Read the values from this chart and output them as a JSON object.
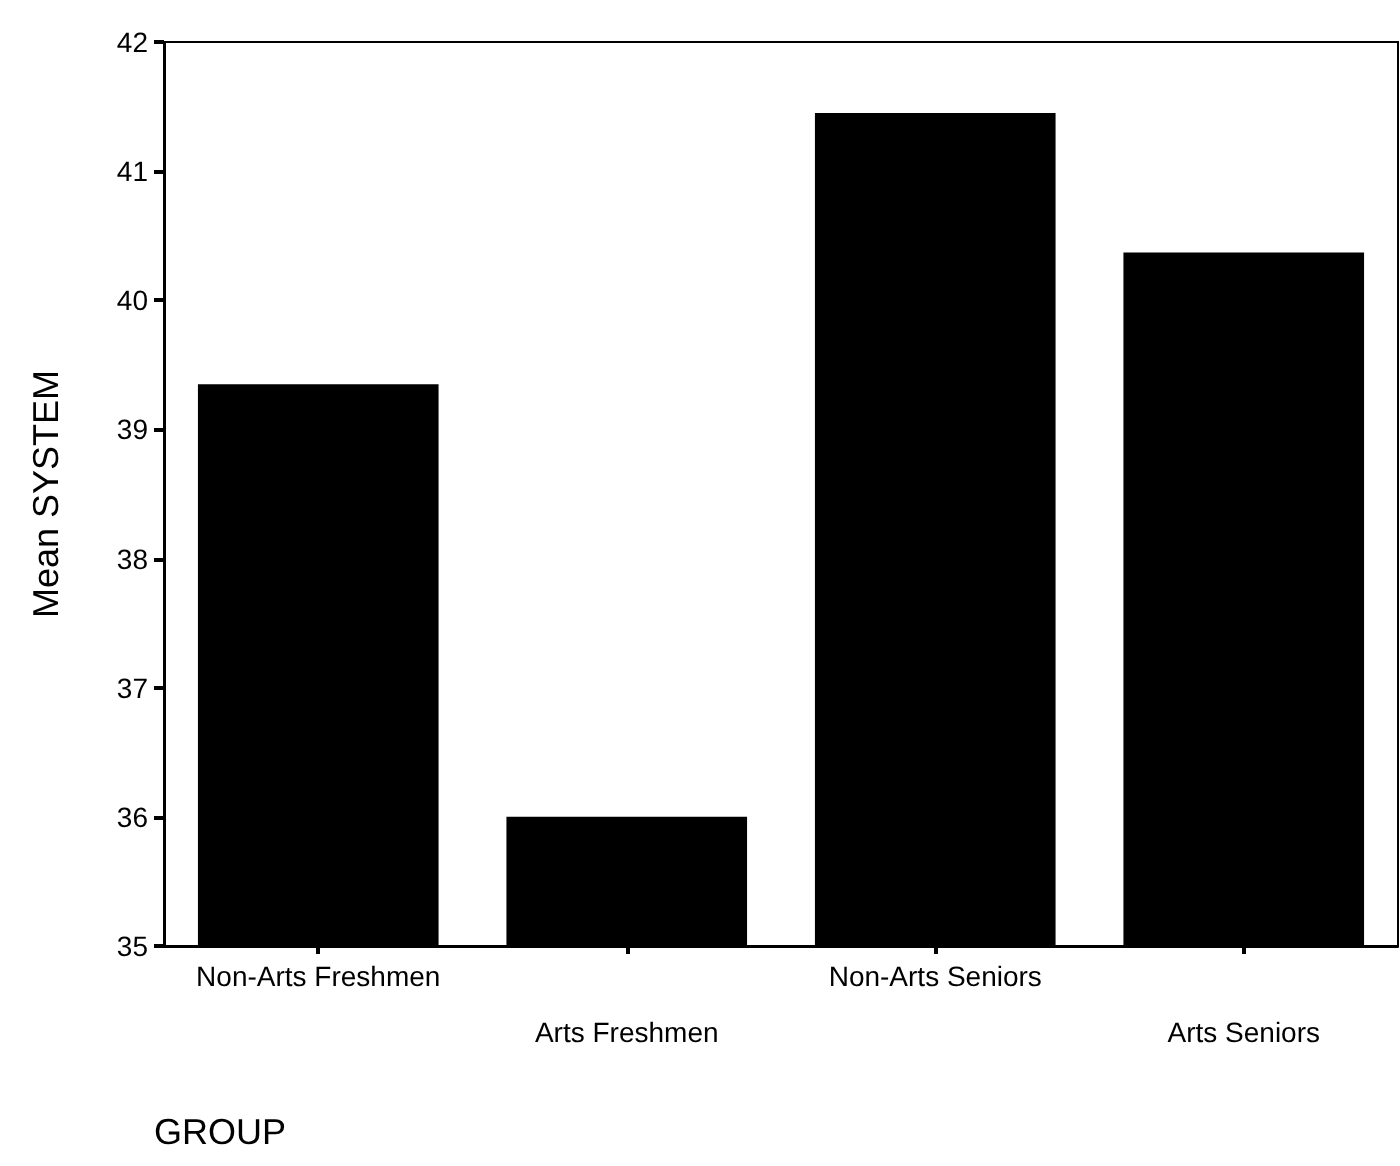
{
  "chart_data": {
    "type": "bar",
    "xlabel": "GROUP",
    "ylabel": "Mean SYSTEM",
    "categories": [
      "Non-Arts Freshmen",
      "Arts Freshmen",
      "Non-Arts Seniors",
      "Arts Seniors"
    ],
    "values": [
      39.35,
      36.0,
      41.45,
      40.37
    ],
    "color": "#000000",
    "ylim": [
      35,
      42
    ],
    "yticks": [
      35,
      36,
      37,
      38,
      39,
      40,
      41,
      42
    ],
    "grid": false
  }
}
